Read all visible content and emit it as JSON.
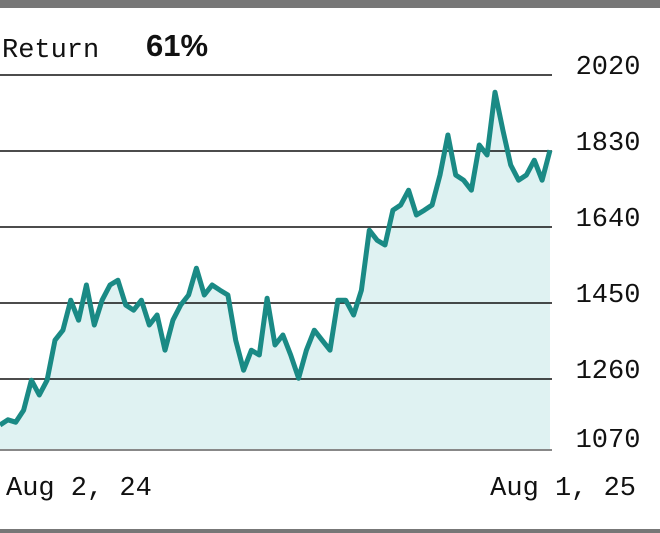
{
  "chart_data": {
    "type": "area",
    "title": "Return",
    "return": "61%",
    "x_labels": [
      "Aug 2, 24",
      "Aug 1, 25"
    ],
    "color": "#1a8a85",
    "fill": "#dff2f2",
    "values": [
      1145,
      1158,
      1152,
      1182,
      1257,
      1220,
      1257,
      1357,
      1382,
      1457,
      1407,
      1495,
      1395,
      1457,
      1495,
      1507,
      1445,
      1432,
      1457,
      1395,
      1420,
      1332,
      1407,
      1445,
      1470,
      1537,
      1470,
      1495,
      1482,
      1470,
      1357,
      1282,
      1332,
      1320,
      1462,
      1345,
      1370,
      1320,
      1262,
      1332,
      1382,
      1357,
      1332,
      1457,
      1457,
      1420,
      1482,
      1632,
      1607,
      1595,
      1682,
      1695,
      1732,
      1670,
      1682,
      1695,
      1770,
      1870,
      1770,
      1757,
      1732,
      1845,
      1820,
      1977,
      1882,
      1795,
      1757,
      1770,
      1807,
      1757,
      1832
    ],
    "ylim": [
      1070,
      2020
    ],
    "yticks": [
      1070,
      1260,
      1450,
      1640,
      1830,
      2020
    ],
    "grid": true
  }
}
